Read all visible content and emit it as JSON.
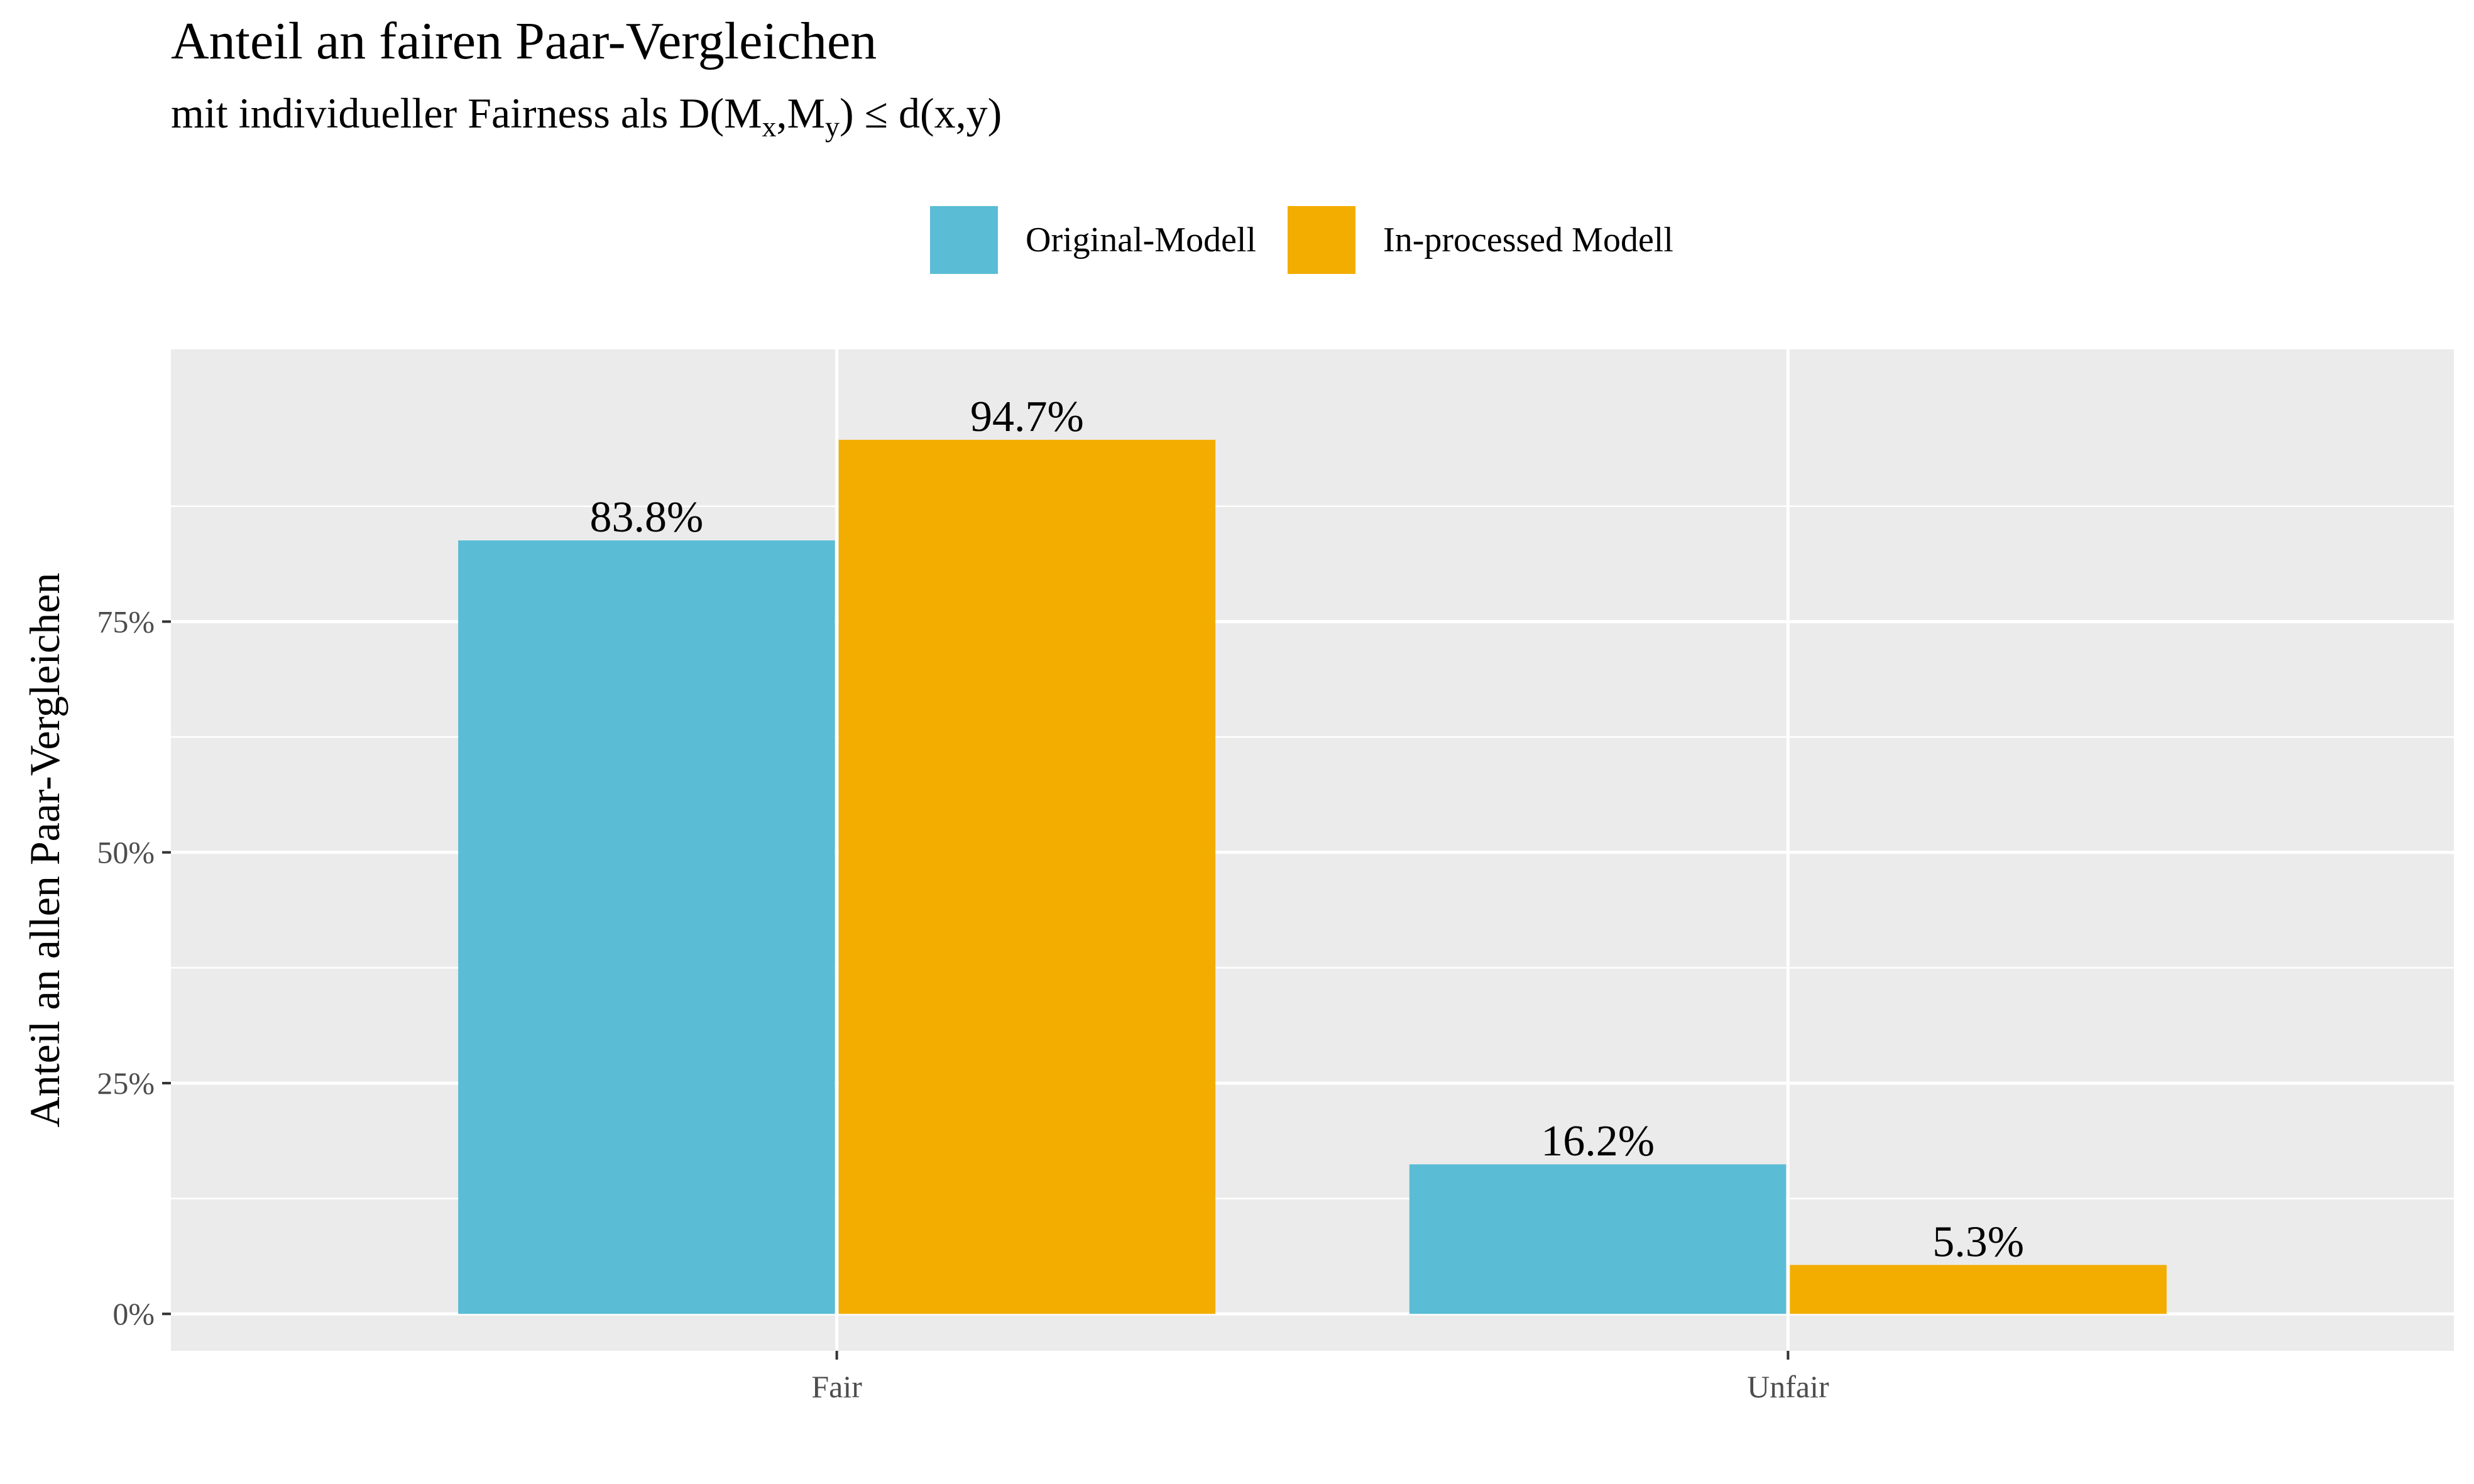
{
  "chart_data": {
    "type": "bar",
    "title": "Anteil an fairen Paar-Vergleichen",
    "subtitle": {
      "text": "mit individueller Fairness als D(M",
      "sub1": "x",
      "mid": ",M",
      "sub2": "y",
      "tail": ") ≤ d(x,y)"
    },
    "xlabel": "",
    "ylabel": "Anteil an allen Paar-Vergleichen",
    "categories": [
      "Fair",
      "Unfair"
    ],
    "series": [
      {
        "name": "Original-Modell",
        "color": "#5BBCD6",
        "values": [
          83.8,
          16.2
        ],
        "labels": [
          "83.8%",
          "16.2%"
        ]
      },
      {
        "name": "In-processed Modell",
        "color": "#F2AD00",
        "values": [
          94.7,
          5.3
        ],
        "labels": [
          "94.7%",
          "5.3%"
        ]
      }
    ],
    "ylim": [
      -4,
      104.5
    ],
    "yticks": [
      0,
      25,
      50,
      75
    ],
    "ytick_labels": [
      "0%",
      "25%",
      "50%",
      "75%"
    ],
    "grid": true,
    "legend_position": "top",
    "panel_background": "#EBEBEB"
  }
}
